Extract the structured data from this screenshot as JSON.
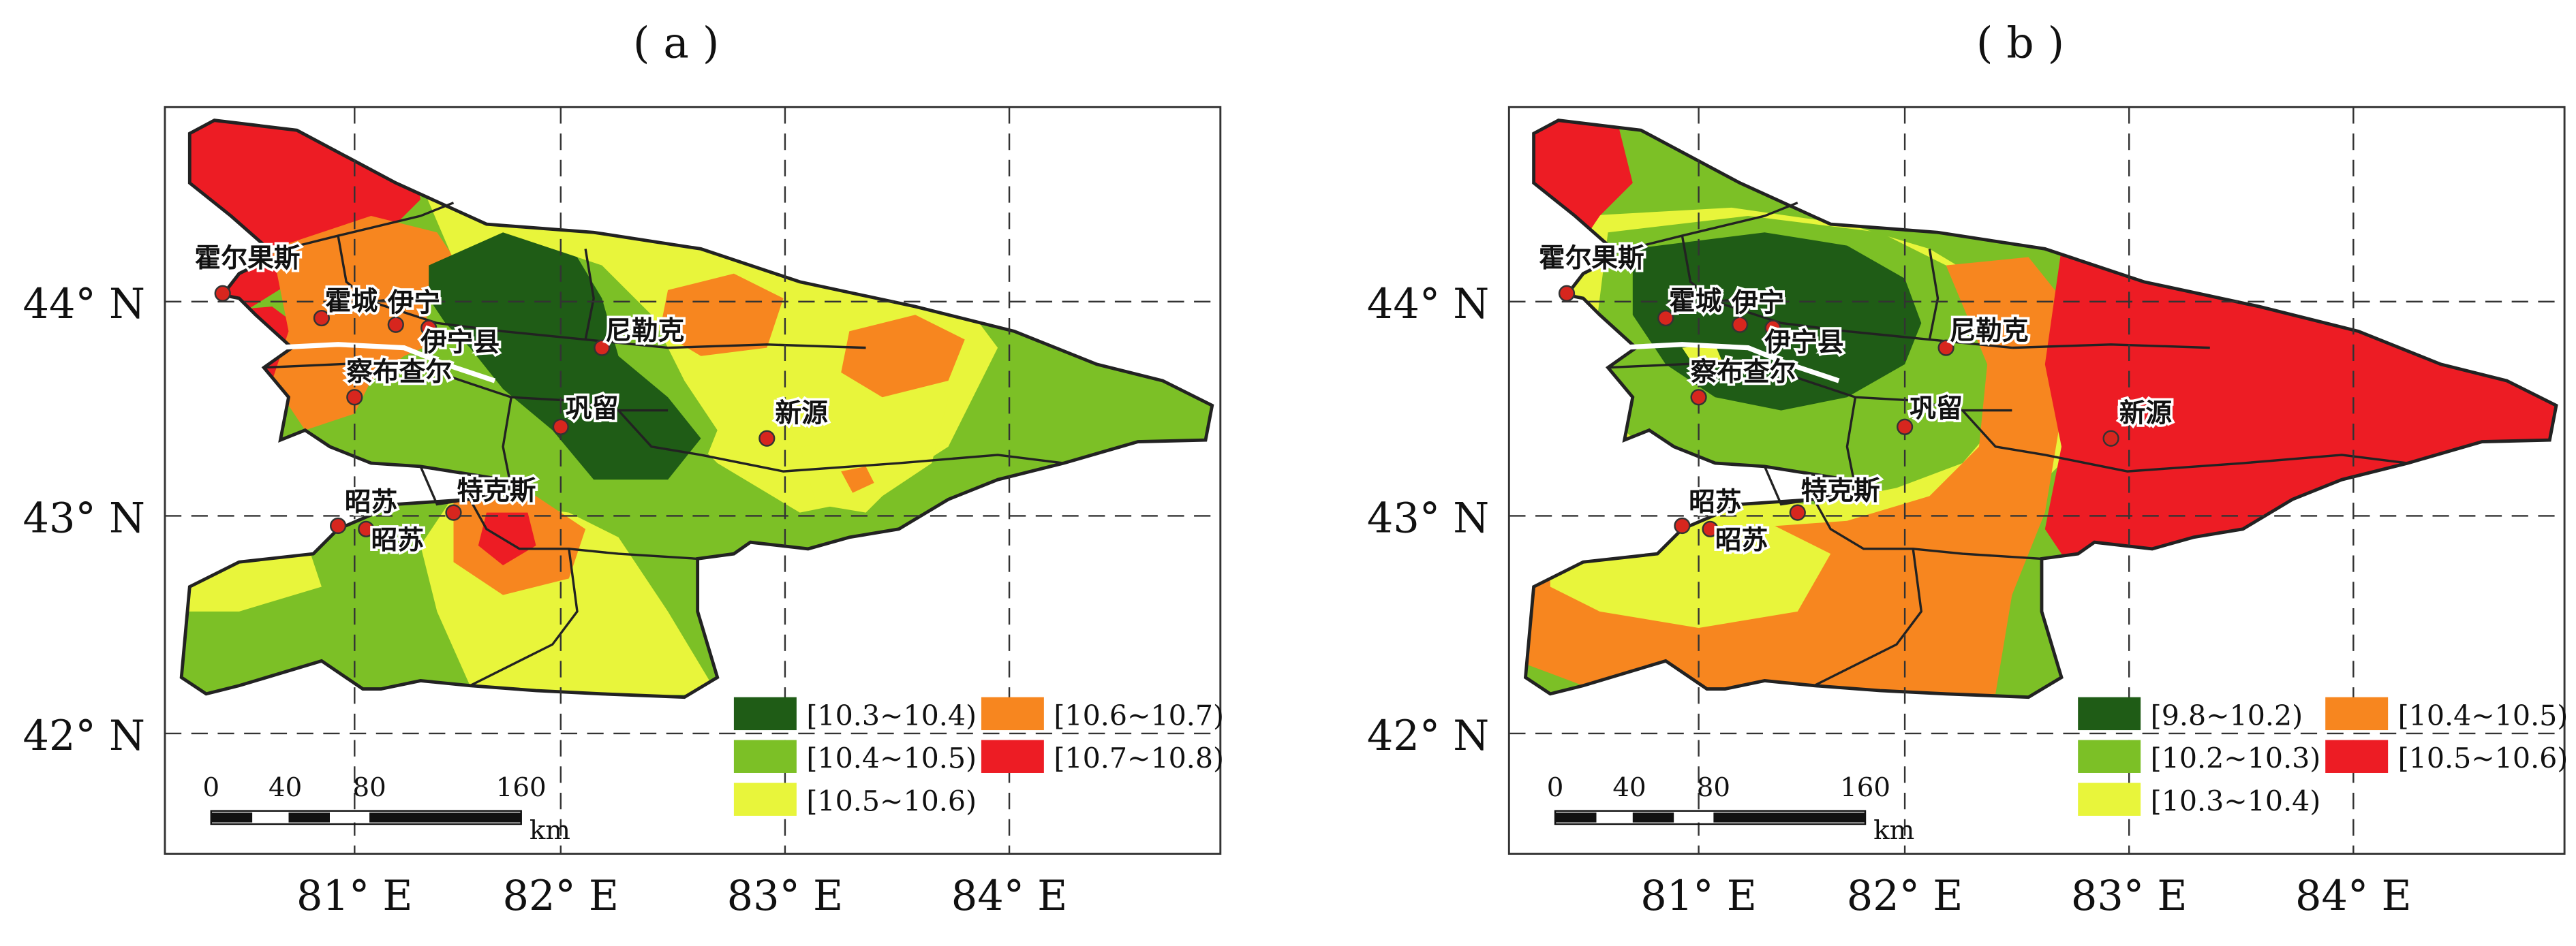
{
  "panels": [
    {
      "id": "a",
      "title": "( a )",
      "legend": [
        {
          "label": "[10.3~10.4)",
          "color": "#1f5c16"
        },
        {
          "label": "[10.4~10.5)",
          "color": "#7cc026"
        },
        {
          "label": "[10.5~10.6)",
          "color": "#e8f53b"
        },
        {
          "label": "[10.6~10.7)",
          "color": "#f7861f"
        },
        {
          "label": "[10.7~10.8)",
          "color": "#ed1c24"
        }
      ]
    },
    {
      "id": "b",
      "title": "( b )",
      "legend": [
        {
          "label": "[9.8~10.2)",
          "color": "#1f5c16"
        },
        {
          "label": "[10.2~10.3)",
          "color": "#7cc026"
        },
        {
          "label": "[10.3~10.4)",
          "color": "#e8f53b"
        },
        {
          "label": "[10.4~10.5)",
          "color": "#f7861f"
        },
        {
          "label": "[10.5~10.6)",
          "color": "#ed1c24"
        }
      ]
    }
  ],
  "axes": {
    "lat_labels": [
      "44° N",
      "43° N",
      "42° N"
    ],
    "lon_labels": [
      "81° E",
      "82° E",
      "83° E",
      "84° E"
    ]
  },
  "cities": [
    "霍尔果斯",
    "霍城",
    "伊宁",
    "伊宁县",
    "察布查尔",
    "尼勒克",
    "巩留",
    "新源",
    "昭苏",
    "昭苏",
    "特克斯"
  ],
  "scale_bar": {
    "ticks": [
      "0",
      "40",
      "80",
      "160"
    ],
    "unit": "km"
  }
}
